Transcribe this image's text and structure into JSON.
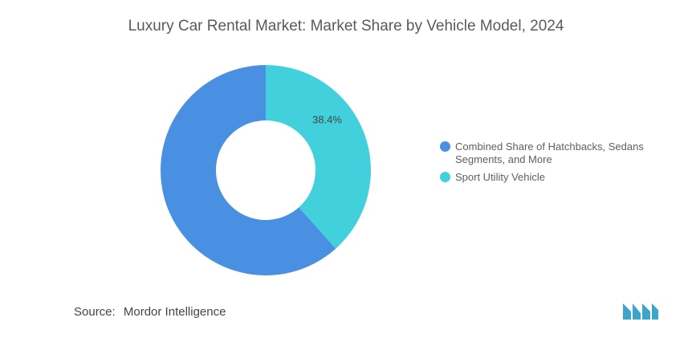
{
  "chart_data": {
    "type": "pie",
    "title": "Luxury Car Rental Market: Market Share by Vehicle Model, 2024",
    "slices": [
      {
        "label": "Combined Share of Hatchbacks, Sedans Segments, and More",
        "value": 61.6,
        "color": "#4a90e2",
        "data_label": ""
      },
      {
        "label": "Sport Utility Vehicle",
        "value": 38.4,
        "color": "#42d1dc",
        "data_label": "38.4%"
      }
    ],
    "legend_position": "right"
  },
  "footer": {
    "source_label": "Source:",
    "source_name": "Mordor Intelligence"
  },
  "logo": {
    "name": "mordor-intelligence-logo",
    "color": "#3ea5c9"
  }
}
